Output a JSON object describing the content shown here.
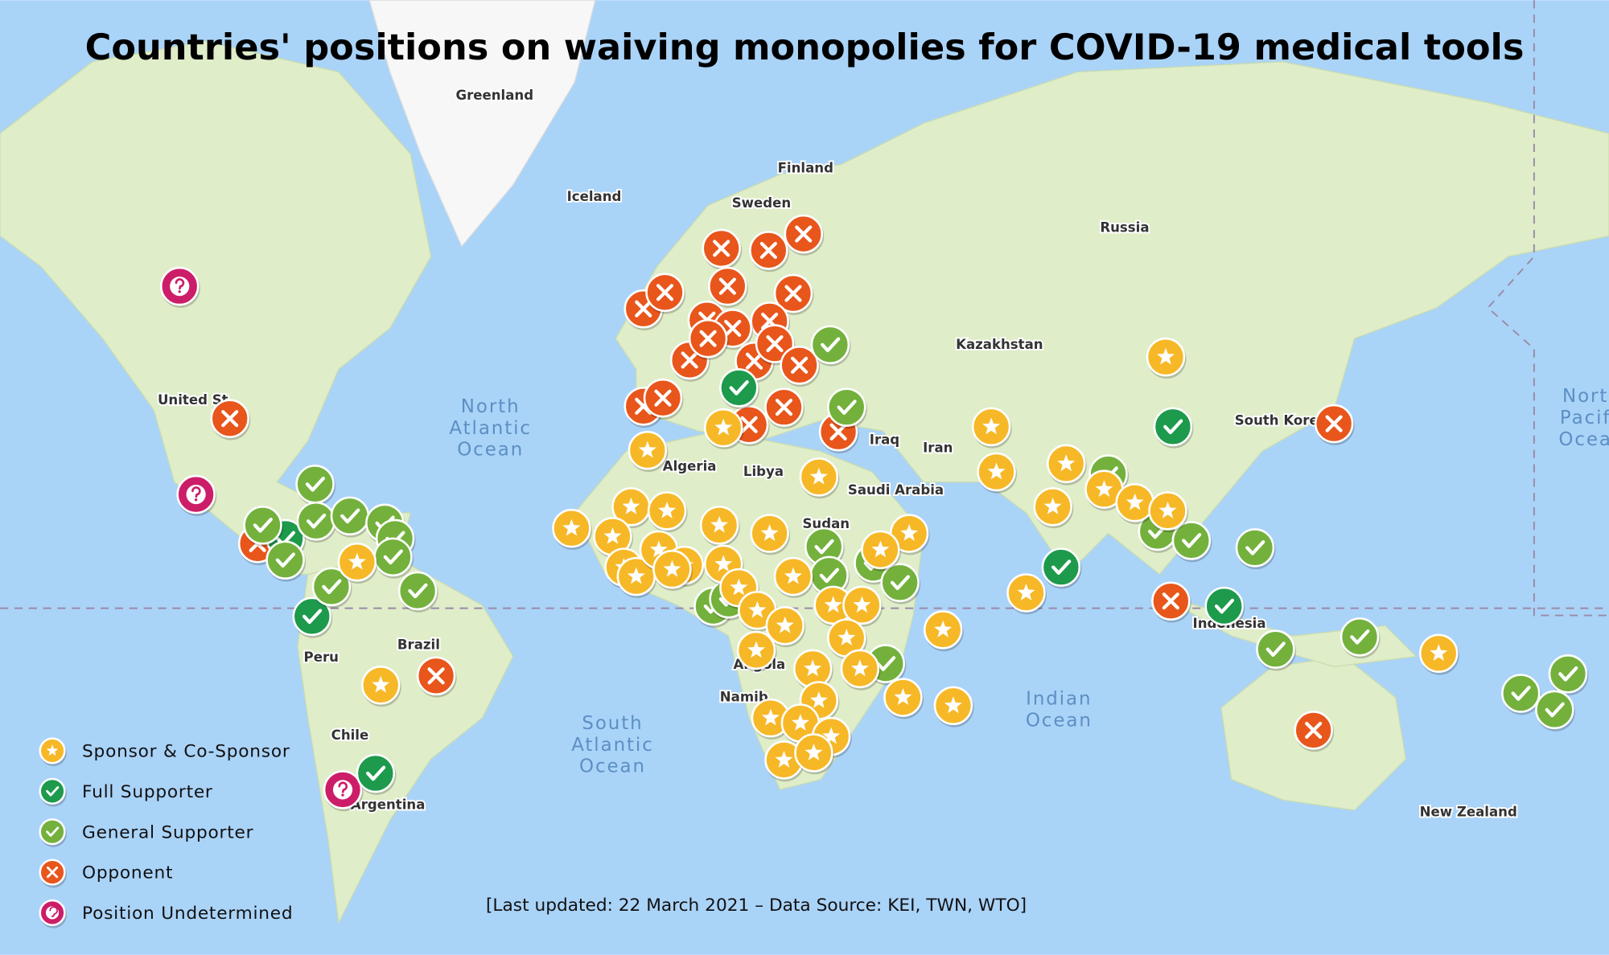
{
  "title": "Countries' positions on waiving monopolies for COVID-19 medical tools",
  "legend": [
    "Sponsor & Co-Sponsor",
    "Full Supporter",
    "General Supporter",
    "Opponent",
    "Position Undetermined"
  ],
  "footer": "[Last updated: 22 March 2021 – Data Source: KEI, TWN, WTO]",
  "places": [
    "Greenland",
    "Iceland",
    "Finland",
    "Sweden",
    "Russia",
    "Kazakhstan",
    "Iraq",
    "Iran",
    "Algeria",
    "Libya",
    "Saudi Arabia",
    "Sudan",
    "Brazil",
    "Peru",
    "Chile",
    "Argentina",
    "Indonesia",
    "South Kore",
    "New Zealand",
    "United St",
    "Namib",
    "Angola"
  ],
  "oceans": [
    [
      "North",
      "Atlantic",
      "Ocean"
    ],
    [
      "South",
      "Atlantic",
      "Ocean"
    ],
    [
      "Indian",
      "Ocean"
    ],
    [
      "Nort",
      "Pacif",
      "Ocea"
    ]
  ]
}
